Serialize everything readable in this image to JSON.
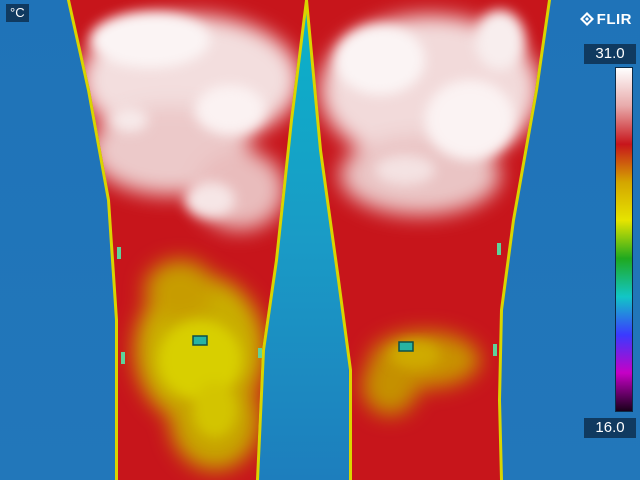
{
  "unit_label": "°C",
  "brand": {
    "text": "FLIR",
    "icon": "flir-logo-icon"
  },
  "scale": {
    "max": "31.0",
    "min": "16.0",
    "palette": [
      "#ffffff",
      "#e8aaaa",
      "#c7151b",
      "#d4a600",
      "#e6e400",
      "#1fa91f",
      "#12c6c6",
      "#3a3aff",
      "#c600c6",
      "#1a001a"
    ]
  },
  "image": {
    "subject": "thermal image of two legs (knees) against a cooler background",
    "background_color": "#1c6eb4",
    "edge_color": "#d9d400",
    "warm_color": "#c7151b",
    "hot_color": "#f7ecec",
    "knee_color": "#cdb900"
  }
}
